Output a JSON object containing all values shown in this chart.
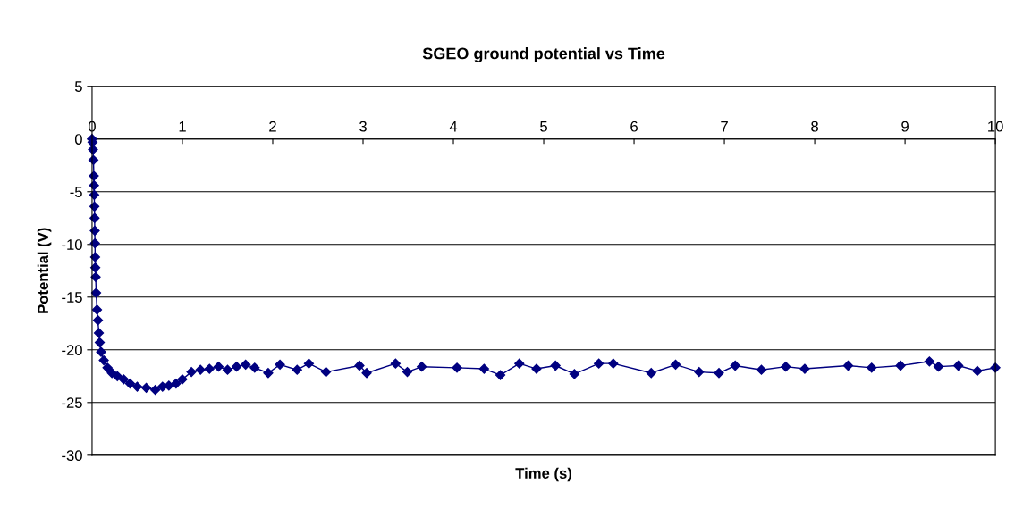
{
  "chart_data": {
    "type": "line",
    "title": "SGEO ground potential vs Time",
    "xlabel": "Time (s)",
    "ylabel": "Potential (V)",
    "marker": "diamond",
    "grid": "y",
    "xlim": [
      0,
      10
    ],
    "ylim": [
      -30,
      5
    ],
    "xticks": [
      0,
      1,
      2,
      3,
      4,
      5,
      6,
      7,
      8,
      9,
      10
    ],
    "yticks": [
      -30,
      -25,
      -20,
      -15,
      -10,
      -5,
      0,
      5
    ],
    "series": [
      {
        "color": "#000080",
        "x": [
          0,
          0.005,
          0.01,
          0.015,
          0.02,
          0.022,
          0.024,
          0.026,
          0.028,
          0.03,
          0.032,
          0.034,
          0.036,
          0.04,
          0.045,
          0.055,
          0.065,
          0.075,
          0.085,
          0.1,
          0.13,
          0.17,
          0.22,
          0.28,
          0.35,
          0.42,
          0.5,
          0.6,
          0.7,
          0.78,
          0.85,
          0.93,
          1.0,
          1.1,
          1.2,
          1.3,
          1.4,
          1.5,
          1.6,
          1.7,
          1.8,
          1.95,
          2.08,
          2.27,
          2.4,
          2.59,
          2.96,
          3.04,
          3.36,
          3.49,
          3.65,
          4.04,
          4.34,
          4.52,
          4.73,
          4.92,
          5.13,
          5.34,
          5.61,
          5.77,
          6.19,
          6.46,
          6.72,
          6.94,
          7.12,
          7.41,
          7.68,
          7.89,
          8.37,
          8.63,
          8.95,
          9.27,
          9.37,
          9.59,
          9.8,
          10.0
        ],
        "values": [
          0,
          -0.3,
          -1,
          -2,
          -3.5,
          -4.4,
          -5.3,
          -6.4,
          -7.5,
          -8.7,
          -9.9,
          -11.2,
          -12.2,
          -13.1,
          -14.6,
          -16.2,
          -17.2,
          -18.4,
          -19.3,
          -20.2,
          -21,
          -21.7,
          -22.2,
          -22.5,
          -22.8,
          -23.2,
          -23.5,
          -23.6,
          -23.8,
          -23.5,
          -23.4,
          -23.2,
          -22.8,
          -22.1,
          -21.9,
          -21.8,
          -21.6,
          -21.9,
          -21.6,
          -21.4,
          -21.7,
          -22.2,
          -21.4,
          -21.9,
          -21.3,
          -22.1,
          -21.5,
          -22.2,
          -21.3,
          -22.1,
          -21.6,
          -21.7,
          -21.8,
          -22.4,
          -21.3,
          -21.8,
          -21.5,
          -22.3,
          -21.3,
          -21.3,
          -22.2,
          -21.4,
          -22.1,
          -22.2,
          -21.5,
          -21.9,
          -21.6,
          -21.8,
          -21.5,
          -21.7,
          -21.5,
          -21.1,
          -21.6,
          -21.5,
          -22.0,
          -21.7
        ]
      }
    ]
  }
}
